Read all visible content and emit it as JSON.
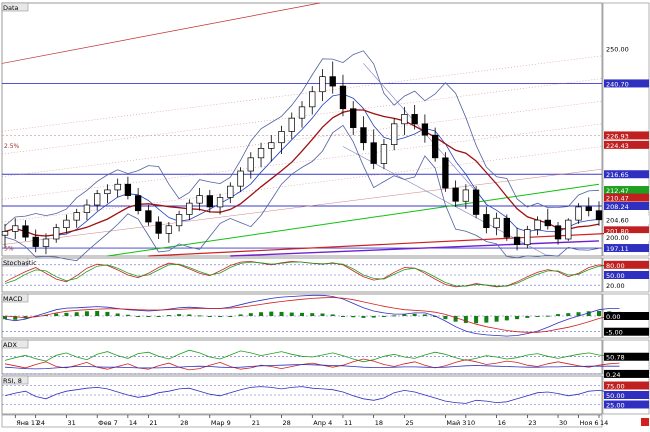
{
  "chart_data": [
    {
      "panel": "price",
      "type": "candlestick",
      "title": "Data",
      "ylim": [
        195,
        262
      ],
      "axis_ticks": [
        {
          "value": 250.0,
          "label": "250.00"
        }
      ],
      "price_labels": [
        {
          "value": 240.7,
          "label": "240.70",
          "color": "#3030c0"
        },
        {
          "value": 226.93,
          "label": "226.93",
          "color": "#c02020"
        },
        {
          "value": 224.43,
          "label": "224.43",
          "color": "#c02020"
        },
        {
          "value": 216.65,
          "label": "216.65",
          "color": "#3030c0"
        },
        {
          "value": 212.47,
          "label": "212.47",
          "color": "#20a020"
        },
        {
          "value": 210.47,
          "label": "210.47",
          "color": "#c02020"
        },
        {
          "value": 208.24,
          "label": "208.24",
          "color": "#3030c0"
        },
        {
          "value": 204.6,
          "label": "204.60",
          "color": "#000000"
        },
        {
          "value": 201.8,
          "label": "201.80",
          "color": "#c02020"
        },
        {
          "value": 200.0,
          "label": "200.00",
          "color": "#000000"
        },
        {
          "value": 197.11,
          "label": "197.11",
          "color": "#3030c0"
        }
      ],
      "annotations": [
        "2.5%",
        "5%"
      ],
      "candles": [
        {
          "o": 200.5,
          "h": 203.5,
          "l": 197.0,
          "c": 201.5
        },
        {
          "o": 201.5,
          "h": 205.0,
          "l": 199.5,
          "c": 203.0
        },
        {
          "o": 203.0,
          "h": 204.5,
          "l": 199.0,
          "c": 200.0
        },
        {
          "o": 200.0,
          "h": 202.0,
          "l": 196.0,
          "c": 197.5
        },
        {
          "o": 197.5,
          "h": 201.0,
          "l": 195.5,
          "c": 199.5
        },
        {
          "o": 199.5,
          "h": 203.5,
          "l": 198.5,
          "c": 202.5
        },
        {
          "o": 202.5,
          "h": 206.0,
          "l": 201.0,
          "c": 204.5
        },
        {
          "o": 204.5,
          "h": 207.5,
          "l": 202.5,
          "c": 206.5
        },
        {
          "o": 206.5,
          "h": 210.0,
          "l": 204.5,
          "c": 208.5
        },
        {
          "o": 208.5,
          "h": 212.5,
          "l": 207.0,
          "c": 211.5
        },
        {
          "o": 211.5,
          "h": 214.0,
          "l": 209.0,
          "c": 212.5
        },
        {
          "o": 212.5,
          "h": 215.5,
          "l": 210.5,
          "c": 214.0
        },
        {
          "o": 214.0,
          "h": 216.0,
          "l": 210.0,
          "c": 211.0
        },
        {
          "o": 211.0,
          "h": 213.0,
          "l": 206.0,
          "c": 207.0
        },
        {
          "o": 207.0,
          "h": 208.5,
          "l": 203.0,
          "c": 204.0
        },
        {
          "o": 204.0,
          "h": 205.5,
          "l": 199.5,
          "c": 201.0
        },
        {
          "o": 201.0,
          "h": 204.0,
          "l": 198.5,
          "c": 203.0
        },
        {
          "o": 203.0,
          "h": 207.0,
          "l": 201.5,
          "c": 206.0
        },
        {
          "o": 206.0,
          "h": 210.0,
          "l": 204.5,
          "c": 209.0
        },
        {
          "o": 209.0,
          "h": 213.0,
          "l": 207.0,
          "c": 211.0
        },
        {
          "o": 211.0,
          "h": 212.5,
          "l": 206.5,
          "c": 208.0
        },
        {
          "o": 208.0,
          "h": 211.5,
          "l": 206.0,
          "c": 210.5
        },
        {
          "o": 210.5,
          "h": 214.5,
          "l": 209.0,
          "c": 213.5
        },
        {
          "o": 213.5,
          "h": 218.5,
          "l": 212.0,
          "c": 217.5
        },
        {
          "o": 217.5,
          "h": 222.5,
          "l": 215.5,
          "c": 221.0
        },
        {
          "o": 221.0,
          "h": 225.0,
          "l": 218.5,
          "c": 223.5
        },
        {
          "o": 223.5,
          "h": 227.0,
          "l": 220.0,
          "c": 225.0
        },
        {
          "o": 225.0,
          "h": 229.5,
          "l": 222.0,
          "c": 228.0
        },
        {
          "o": 228.0,
          "h": 233.0,
          "l": 226.0,
          "c": 231.5
        },
        {
          "o": 231.5,
          "h": 236.0,
          "l": 229.0,
          "c": 234.5
        },
        {
          "o": 234.5,
          "h": 240.0,
          "l": 232.5,
          "c": 238.5
        },
        {
          "o": 238.5,
          "h": 244.5,
          "l": 236.0,
          "c": 242.5
        },
        {
          "o": 242.5,
          "h": 246.5,
          "l": 238.0,
          "c": 240.0
        },
        {
          "o": 240.0,
          "h": 243.0,
          "l": 232.0,
          "c": 234.0
        },
        {
          "o": 234.0,
          "h": 236.0,
          "l": 227.0,
          "c": 229.0
        },
        {
          "o": 229.0,
          "h": 232.0,
          "l": 223.0,
          "c": 225.0
        },
        {
          "o": 225.0,
          "h": 228.5,
          "l": 218.0,
          "c": 219.5
        },
        {
          "o": 219.5,
          "h": 226.0,
          "l": 218.0,
          "c": 224.5
        },
        {
          "o": 224.5,
          "h": 231.5,
          "l": 223.0,
          "c": 230.0
        },
        {
          "o": 230.0,
          "h": 234.5,
          "l": 227.0,
          "c": 232.5
        },
        {
          "o": 232.5,
          "h": 235.0,
          "l": 228.5,
          "c": 230.0
        },
        {
          "o": 230.0,
          "h": 232.5,
          "l": 225.0,
          "c": 227.0
        },
        {
          "o": 227.0,
          "h": 229.0,
          "l": 220.0,
          "c": 221.0
        },
        {
          "o": 221.0,
          "h": 222.5,
          "l": 212.0,
          "c": 213.0
        },
        {
          "o": 213.0,
          "h": 215.0,
          "l": 208.0,
          "c": 209.5
        },
        {
          "o": 209.5,
          "h": 214.0,
          "l": 207.5,
          "c": 212.5
        },
        {
          "o": 212.5,
          "h": 213.5,
          "l": 205.0,
          "c": 206.0
        },
        {
          "o": 206.0,
          "h": 208.0,
          "l": 201.0,
          "c": 202.5
        },
        {
          "o": 202.5,
          "h": 206.5,
          "l": 200.5,
          "c": 205.0
        },
        {
          "o": 205.0,
          "h": 206.0,
          "l": 199.0,
          "c": 200.0
        },
        {
          "o": 200.0,
          "h": 202.5,
          "l": 196.5,
          "c": 198.0
        },
        {
          "o": 198.0,
          "h": 203.0,
          "l": 197.0,
          "c": 202.0
        },
        {
          "o": 202.0,
          "h": 205.5,
          "l": 200.5,
          "c": 204.5
        },
        {
          "o": 204.5,
          "h": 207.5,
          "l": 202.0,
          "c": 203.0
        },
        {
          "o": 203.0,
          "h": 204.0,
          "l": 198.0,
          "c": 199.5
        },
        {
          "o": 199.5,
          "h": 205.0,
          "l": 199.0,
          "c": 204.5
        },
        {
          "o": 204.5,
          "h": 209.0,
          "l": 203.5,
          "c": 208.0
        },
        {
          "o": 208.0,
          "h": 210.5,
          "l": 205.5,
          "c": 207.0
        },
        {
          "o": 207.0,
          "h": 209.5,
          "l": 203.0,
          "c": 204.6
        }
      ],
      "x_labels": [
        "Янв 17",
        "24",
        "31",
        "Фев 7",
        "14",
        "21",
        "28",
        "Мар 9",
        "21",
        "28",
        "Апр 4",
        "11",
        "18",
        "25",
        "Май 3",
        "10",
        "16",
        "23",
        "30",
        "Ноя 6",
        "14"
      ],
      "x_label_pos": [
        1,
        3,
        6,
        9,
        12,
        14,
        17,
        20,
        24,
        27,
        30,
        33,
        36,
        39,
        43,
        45,
        48,
        51,
        54,
        56,
        58
      ]
    },
    {
      "panel": "stochastic",
      "type": "line",
      "title": "Stochastic",
      "ylim": [
        0,
        100
      ],
      "ticks": [
        {
          "value": 80,
          "label": "80.00"
        },
        {
          "value": 20,
          "label": "20.00"
        },
        {
          "value": 50,
          "label": "50.00"
        }
      ],
      "label_colors": [
        "#c02020",
        "#000000",
        "#3030c0"
      ],
      "series": [
        {
          "color": "#d02020",
          "values": [
            30,
            45,
            60,
            72,
            55,
            38,
            30,
            48,
            70,
            82,
            78,
            65,
            50,
            42,
            55,
            72,
            85,
            80,
            68,
            55,
            48,
            62,
            78,
            88,
            90,
            85,
            80,
            86,
            90,
            88,
            84,
            82,
            86,
            80,
            62,
            45,
            35,
            40,
            58,
            72,
            70,
            55,
            38,
            22,
            15,
            18,
            25,
            20,
            15,
            18,
            30,
            45,
            58,
            66,
            60,
            45,
            55,
            72,
            80,
            76,
            70
          ]
        },
        {
          "color": "#20a020",
          "values": [
            25,
            35,
            52,
            65,
            62,
            45,
            33,
            40,
            60,
            76,
            80,
            70,
            56,
            46,
            50,
            65,
            80,
            82,
            72,
            60,
            50,
            56,
            72,
            84,
            88,
            86,
            82,
            84,
            88,
            88,
            85,
            83,
            84,
            82,
            68,
            50,
            40,
            38,
            52,
            66,
            70,
            60,
            44,
            28,
            18,
            17,
            22,
            21,
            17,
            17,
            26,
            40,
            52,
            62,
            62,
            50,
            52,
            66,
            76,
            78,
            72
          ]
        }
      ]
    },
    {
      "panel": "macd",
      "type": "bar",
      "title": "MACD",
      "ylim": [
        -7,
        7
      ],
      "ticks": [
        {
          "value": 0,
          "label": "0.00"
        },
        {
          "value": -5,
          "label": "-5.00"
        }
      ],
      "histogram": [
        -1.0,
        -1.2,
        -0.8,
        -0.3,
        0.4,
        0.8,
        1.0,
        1.2,
        1.5,
        1.6,
        1.3,
        0.8,
        0.4,
        0.0,
        -0.3,
        -0.2,
        0.3,
        0.6,
        0.5,
        0.2,
        -0.1,
        -0.3,
        0.0,
        0.5,
        0.9,
        1.2,
        1.4,
        1.3,
        1.1,
        1.0,
        0.9,
        0.8,
        0.5,
        0.0,
        -0.4,
        -0.6,
        -0.5,
        -0.2,
        0.2,
        0.5,
        0.7,
        0.5,
        -0.2,
        -1.0,
        -1.8,
        -2.2,
        -2.3,
        -2.1,
        -1.8,
        -1.4,
        -1.0,
        -0.6,
        -0.3,
        0.1,
        0.6,
        0.9,
        1.2,
        1.5,
        1.6,
        1.5,
        1.3
      ],
      "series": [
        {
          "color": "#3030c0",
          "values": [
            -1,
            -1.5,
            -1,
            0,
            1,
            2,
            2.5,
            2.6,
            2.8,
            3,
            2.8,
            2.4,
            2,
            1.8,
            1.6,
            1.8,
            2.2,
            2.6,
            2.8,
            2.6,
            2.4,
            2.4,
            2.8,
            3.6,
            4.4,
            5,
            5.6,
            6,
            6.2,
            6.4,
            6.6,
            6.6,
            6.2,
            5.4,
            4,
            2.6,
            1.6,
            1,
            0.6,
            0.6,
            1,
            1,
            0,
            -1.6,
            -3.4,
            -4.8,
            -5.6,
            -6,
            -6.2,
            -6.4,
            -6.2,
            -5.6,
            -4.8,
            -3.6,
            -2.2,
            -1,
            0,
            1,
            2,
            2.4,
            2.4
          ]
        },
        {
          "color": "#d02020",
          "values": [
            0,
            -0.3,
            -0.5,
            -0.3,
            0.3,
            1,
            1.5,
            1.8,
            2,
            2.2,
            2.3,
            2.3,
            2.2,
            2,
            1.9,
            1.9,
            2,
            2.1,
            2.3,
            2.4,
            2.4,
            2.4,
            2.5,
            2.8,
            3.2,
            3.7,
            4.2,
            4.6,
            5,
            5.3,
            5.6,
            5.8,
            5.9,
            5.7,
            5.2,
            4.5,
            3.8,
            3.1,
            2.5,
            2,
            1.8,
            1.6,
            1.2,
            0.5,
            -0.5,
            -1.6,
            -2.6,
            -3.4,
            -4,
            -4.6,
            -5,
            -5.2,
            -5.2,
            -4.8,
            -4.2,
            -3.6,
            -2.8,
            -1.8,
            -0.8,
            0,
            0.8
          ]
        }
      ]
    },
    {
      "panel": "adx",
      "type": "line",
      "title": "ADX",
      "ylim": [
        0,
        100
      ],
      "ticks": [
        {
          "value": 50.78,
          "label": "50.78"
        },
        {
          "value": 0.24,
          "label": "0.24"
        }
      ],
      "series": [
        {
          "color": "#20a020",
          "values": [
            40,
            48,
            55,
            45,
            38,
            55,
            62,
            50,
            42,
            58,
            66,
            54,
            46,
            60,
            64,
            52,
            44,
            58,
            70,
            62,
            50,
            44,
            56,
            68,
            62,
            54,
            60,
            66,
            58,
            52,
            50,
            56,
            62,
            54,
            44,
            36,
            42,
            52,
            58,
            50,
            46,
            56,
            64,
            58,
            48,
            40,
            46,
            54,
            50,
            44,
            48,
            56,
            60,
            52,
            46,
            52,
            58,
            62,
            56,
            52,
            50
          ]
        },
        {
          "color": "#d02020",
          "values": [
            30,
            24,
            18,
            28,
            36,
            22,
            18,
            26,
            34,
            20,
            14,
            22,
            30,
            18,
            14,
            24,
            32,
            20,
            12,
            16,
            26,
            34,
            22,
            14,
            18,
            26,
            22,
            16,
            22,
            28,
            32,
            26,
            20,
            26,
            36,
            44,
            38,
            28,
            22,
            30,
            36,
            26,
            18,
            24,
            34,
            42,
            36,
            28,
            32,
            38,
            34,
            26,
            22,
            30,
            36,
            30,
            24,
            20,
            26,
            30,
            32
          ]
        },
        {
          "color": "#3030c0",
          "values": [
            20,
            18,
            16,
            15,
            16,
            18,
            20,
            22,
            22,
            21,
            20,
            20,
            19,
            18,
            18,
            18,
            19,
            20,
            22,
            23,
            22,
            20,
            19,
            20,
            22,
            24,
            25,
            26,
            27,
            28,
            27,
            26,
            25,
            24,
            22,
            20,
            19,
            19,
            20,
            21,
            21,
            20,
            19,
            20,
            22,
            24,
            25,
            24,
            23,
            22,
            21,
            20,
            20,
            21,
            21,
            22,
            22,
            23,
            23,
            23,
            23
          ]
        }
      ]
    },
    {
      "panel": "rsi",
      "type": "line",
      "title": "RSI, 8",
      "ylim": [
        0,
        100
      ],
      "ticks": [
        {
          "value": 75,
          "label": "75.00"
        },
        {
          "value": 50,
          "label": "50.00"
        },
        {
          "value": 25,
          "label": "25.00"
        }
      ],
      "label_colors": [
        "#c02020",
        "#3030c0",
        "#3030c0"
      ],
      "series": [
        {
          "color": "#3030c0",
          "values": [
            48,
            55,
            60,
            46,
            40,
            52,
            60,
            64,
            68,
            70,
            66,
            58,
            50,
            44,
            48,
            56,
            60,
            66,
            68,
            60,
            52,
            48,
            56,
            64,
            70,
            72,
            70,
            66,
            70,
            72,
            68,
            66,
            64,
            58,
            48,
            40,
            36,
            42,
            56,
            62,
            58,
            50,
            42,
            34,
            30,
            28,
            36,
            34,
            30,
            32,
            40,
            48,
            56,
            58,
            54,
            48,
            52,
            60,
            62,
            58,
            54
          ]
        }
      ]
    }
  ]
}
